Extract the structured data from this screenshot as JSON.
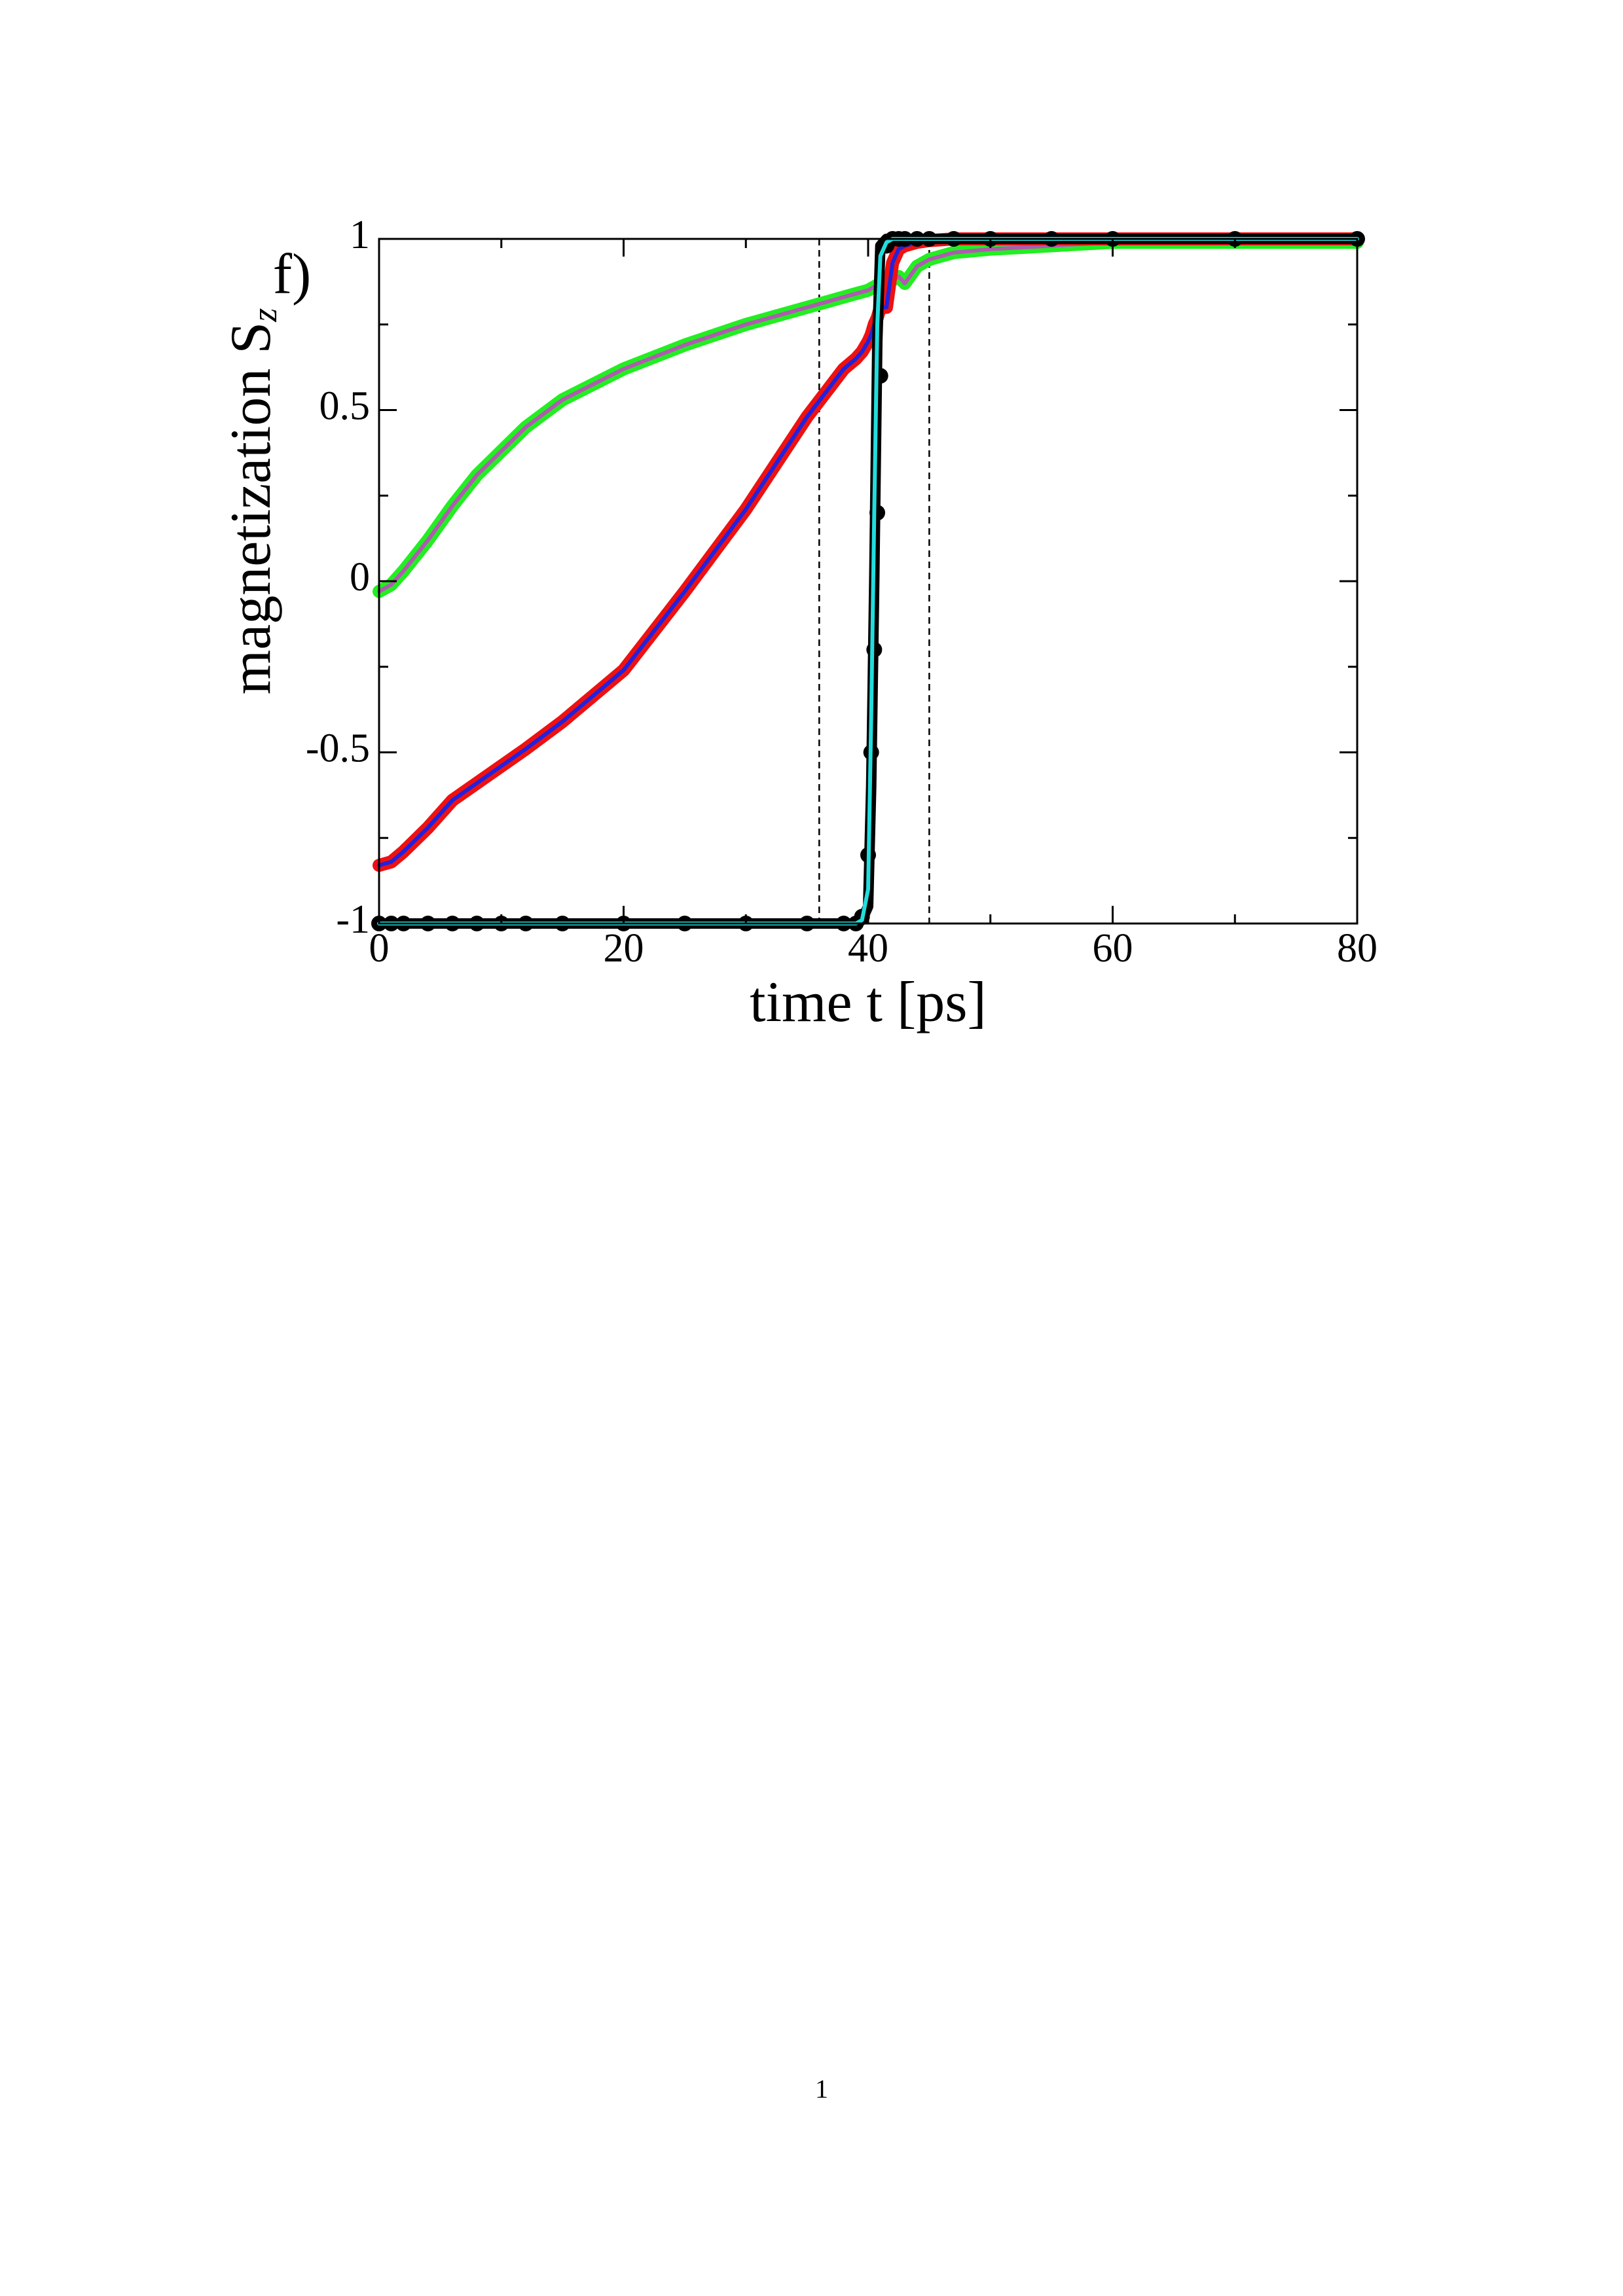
{
  "chart_data": {
    "type": "line",
    "annotation": "f)",
    "xlabel": "time t [ps]",
    "ylabel": "magnetization S",
    "ylabel_sub": "z",
    "page_number": "1",
    "xlim": [
      0,
      80
    ],
    "ylim": [
      -1,
      1
    ],
    "xticks": [
      0,
      20,
      40,
      60,
      80
    ],
    "yticks": [
      -1,
      -0.5,
      0,
      0.5,
      1
    ],
    "xminorticks": [
      10,
      30,
      50,
      70
    ],
    "yminorticks": [
      -0.75,
      -0.25,
      0.25,
      0.75
    ],
    "vlines": [
      36,
      45
    ],
    "x": [
      0,
      1,
      2,
      4,
      6,
      8,
      10,
      12,
      15,
      20,
      25,
      30,
      35,
      38,
      39,
      39.5,
      40,
      40.25,
      40.5,
      40.75,
      41,
      41.5,
      42,
      42.5,
      43,
      44,
      45,
      47,
      50,
      55,
      60,
      70,
      80
    ],
    "series": [
      {
        "color": "#22ee22",
        "style": "line",
        "linewidth": 20,
        "values": [
          -0.03,
          -0.01,
          0.03,
          0.12,
          0.22,
          0.31,
          0.38,
          0.45,
          0.53,
          0.62,
          0.69,
          0.75,
          0.8,
          0.83,
          0.84,
          0.845,
          0.85,
          0.855,
          0.86,
          0.865,
          0.87,
          0.875,
          0.88,
          0.89,
          0.87,
          0.92,
          0.94,
          0.96,
          0.97,
          0.98,
          0.99,
          0.99,
          0.99
        ]
      },
      {
        "color": "#b05ab0",
        "style": "line",
        "linewidth": 6,
        "values": [
          -0.03,
          -0.01,
          0.03,
          0.12,
          0.22,
          0.31,
          0.38,
          0.45,
          0.53,
          0.62,
          0.69,
          0.75,
          0.8,
          0.83,
          0.84,
          0.845,
          0.85,
          0.855,
          0.86,
          0.865,
          0.87,
          0.875,
          0.88,
          0.89,
          0.87,
          0.92,
          0.94,
          0.96,
          0.97,
          0.98,
          0.99,
          0.99,
          0.99
        ]
      },
      {
        "color": "#ee1111",
        "style": "line",
        "linewidth": 20,
        "values": [
          -0.83,
          -0.82,
          -0.79,
          -0.72,
          -0.64,
          -0.59,
          -0.54,
          -0.49,
          -0.41,
          -0.26,
          -0.03,
          0.21,
          0.48,
          0.62,
          0.65,
          0.67,
          0.7,
          0.72,
          0.75,
          0.77,
          0.8,
          0.8,
          0.93,
          0.97,
          0.98,
          0.99,
          0.995,
          1,
          1,
          1,
          1,
          1,
          1
        ]
      },
      {
        "color": "#2222dd",
        "style": "line",
        "linewidth": 6,
        "values": [
          -0.83,
          -0.82,
          -0.79,
          -0.72,
          -0.64,
          -0.59,
          -0.54,
          -0.49,
          -0.41,
          -0.26,
          -0.03,
          0.21,
          0.48,
          0.62,
          0.65,
          0.67,
          0.7,
          0.72,
          0.75,
          0.77,
          0.8,
          0.8,
          0.93,
          0.97,
          0.98,
          0.99,
          0.995,
          1,
          1,
          1,
          1,
          1,
          1
        ]
      },
      {
        "color": "#000000",
        "style": "markers",
        "marker_radius": 12,
        "values": [
          -1,
          -1,
          -1,
          -1,
          -1,
          -1,
          -1,
          -1,
          -1,
          -1,
          -1,
          -1,
          -1,
          -1,
          -1,
          -0.98,
          -0.8,
          -0.5,
          -0.2,
          0.2,
          0.6,
          0.98,
          1,
          1,
          1,
          1,
          1,
          1,
          1,
          1,
          1,
          1,
          1
        ]
      },
      {
        "color": "#000000",
        "style": "line",
        "linewidth": 16,
        "values": [
          -1,
          -1,
          -1,
          -1,
          -1,
          -1,
          -1,
          -1,
          -1,
          -1,
          -1,
          -1,
          -1,
          -1,
          -1,
          -0.99,
          -0.95,
          -0.6,
          0,
          0.7,
          0.98,
          1,
          1,
          1,
          1,
          1,
          1,
          1,
          1,
          1,
          1,
          1,
          1
        ]
      },
      {
        "color": "#22dddd",
        "style": "line",
        "linewidth": 6,
        "values": [
          -1,
          -1,
          -1,
          -1,
          -1,
          -1,
          -1,
          -1,
          -1,
          -1,
          -1,
          -1,
          -1,
          -1,
          -1,
          -0.99,
          -0.9,
          -0.4,
          0.2,
          0.75,
          0.95,
          0.99,
          1,
          1,
          1,
          1,
          1,
          1,
          1,
          1,
          1,
          1,
          1
        ]
      }
    ]
  }
}
